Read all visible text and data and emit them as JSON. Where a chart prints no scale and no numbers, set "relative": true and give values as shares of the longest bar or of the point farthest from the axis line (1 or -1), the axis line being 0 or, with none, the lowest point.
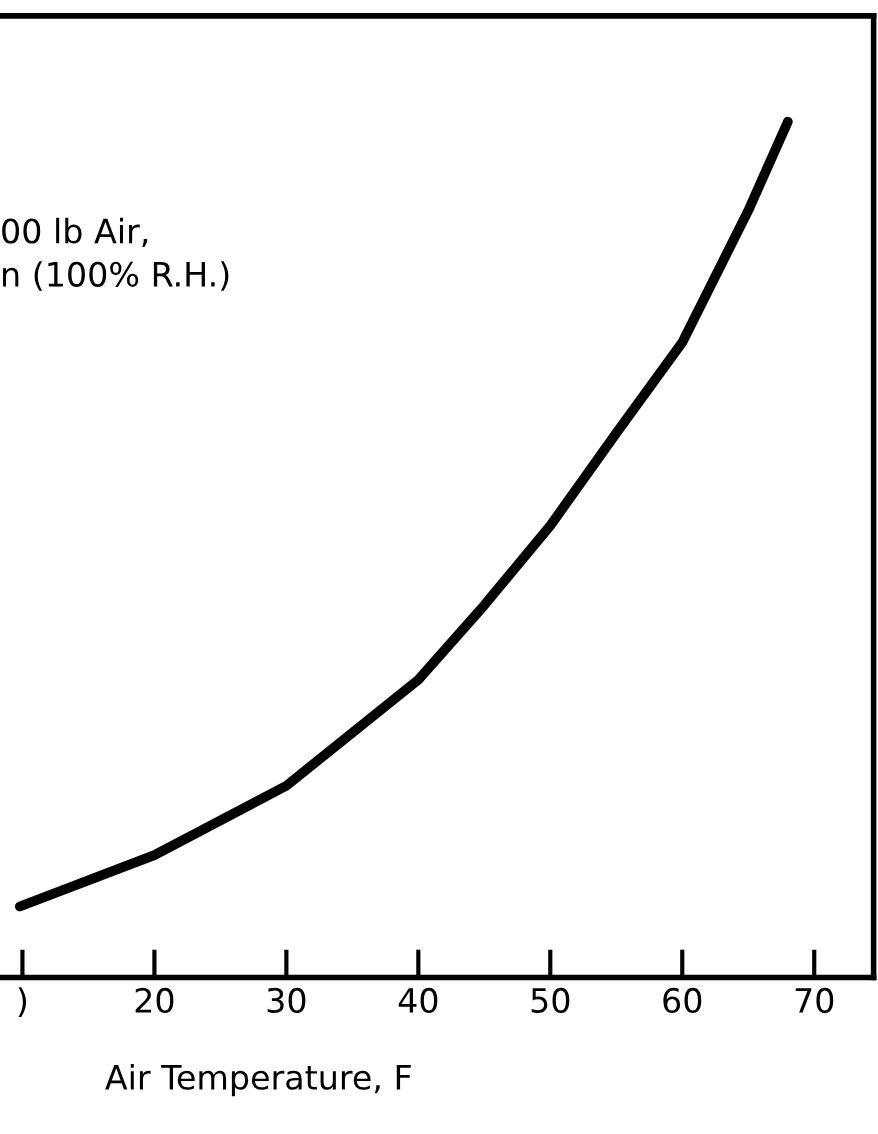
{
  "chart_data": {
    "type": "line",
    "relative": true,
    "xlabel": "Air Temperature, F",
    "annotations": [
      "00 lb Air,",
      "n (100% R.H.)"
    ],
    "x": [
      9.8,
      20,
      30,
      40,
      45,
      50,
      55,
      60,
      65,
      68
    ],
    "series": [
      {
        "color": "#000000",
        "values": [
          0.083,
          0.143,
          0.224,
          0.348,
          0.435,
          0.528,
          0.636,
          0.742,
          0.896,
          1
        ]
      }
    ],
    "xlim": [
      8.3,
      74.5
    ],
    "xticks": [
      {
        "value": 10,
        "label": ")"
      },
      20,
      30,
      40,
      50,
      60,
      70
    ],
    "grid": false,
    "legend": false,
    "marker": "none",
    "line_style": "solid"
  }
}
